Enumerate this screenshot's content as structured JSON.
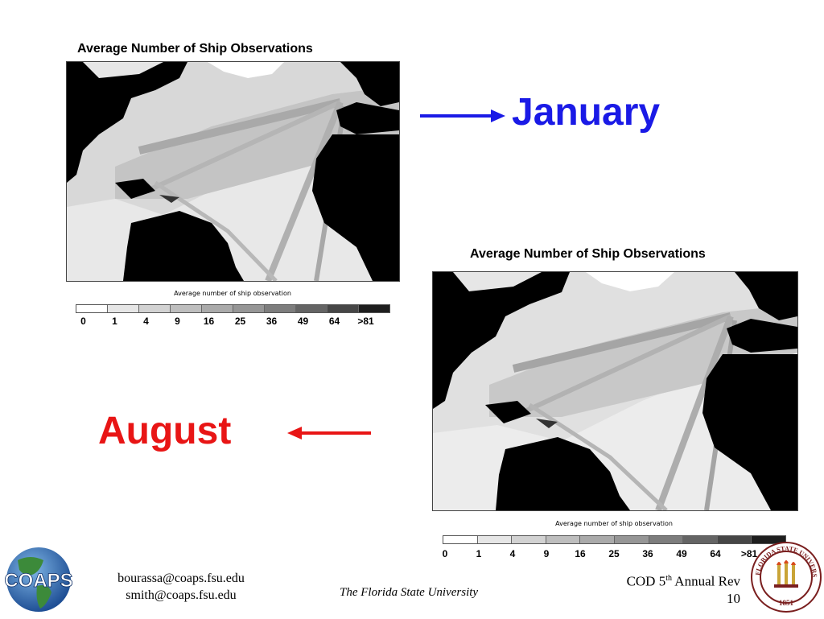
{
  "maps": [
    {
      "title": "Average Number of Ship Observations",
      "legend_title": "Average number of ship observation",
      "legend_ticks": [
        "0",
        "1",
        "4",
        "9",
        "16",
        "25",
        "36",
        "49",
        "64",
        ">81"
      ]
    },
    {
      "title": "Average Number of Ship Observations",
      "legend_title": "Average number of ship observation",
      "legend_ticks": [
        "0",
        "1",
        "4",
        "9",
        "16",
        "25",
        "36",
        "49",
        "64",
        ">81"
      ]
    }
  ],
  "legend_colors": [
    "#ffffff",
    "#e6e6e6",
    "#d2d2d2",
    "#bebebe",
    "#aaaaaa",
    "#969696",
    "#7d7d7d",
    "#646464",
    "#464646",
    "#1e1e1e"
  ],
  "labels": {
    "january": "January",
    "august": "August",
    "january_color": "#1a1ae6",
    "august_color": "#e81515"
  },
  "footer": {
    "logo_text": "COAPS",
    "email_1": "bourassa@coaps.fsu.edu",
    "email_2": "smith@coaps.fsu.edu",
    "university": "The Florida State University",
    "conf_prefix": "COD 5",
    "conf_sup": "th",
    "conf_suffix": " Annual Rev",
    "page_number": "10",
    "seal_top": "FLORIDA STATE UNIVERSITY",
    "seal_year": "1851"
  }
}
